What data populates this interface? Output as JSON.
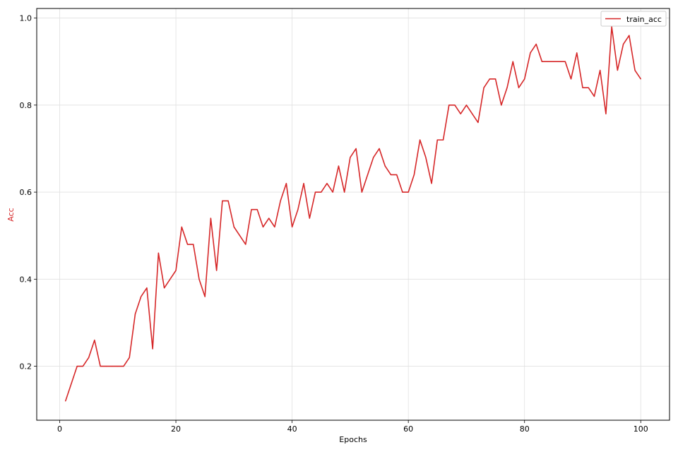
{
  "chart_data": {
    "type": "line",
    "xlabel": "Epochs",
    "ylabel": "Acc",
    "xlim": [
      -3.95,
      104.95
    ],
    "ylim": [
      0.076,
      1.022
    ],
    "xticks": [
      0,
      20,
      40,
      60,
      80,
      100
    ],
    "yticks": [
      0.2,
      0.4,
      0.6,
      0.8,
      1.0
    ],
    "xtick_labels": [
      "0",
      "20",
      "40",
      "60",
      "80",
      "100"
    ],
    "ytick_labels": [
      "0.2",
      "0.4",
      "0.6",
      "0.8",
      "1.0"
    ],
    "grid": true,
    "legend_position": "top-right",
    "series": [
      {
        "name": "train_acc",
        "color": "#d62728",
        "x": [
          1,
          2,
          3,
          4,
          5,
          6,
          7,
          8,
          9,
          10,
          11,
          12,
          13,
          14,
          15,
          16,
          17,
          18,
          19,
          20,
          21,
          22,
          23,
          24,
          25,
          26,
          27,
          28,
          29,
          30,
          31,
          32,
          33,
          34,
          35,
          36,
          37,
          38,
          39,
          40,
          41,
          42,
          43,
          44,
          45,
          46,
          47,
          48,
          49,
          50,
          51,
          52,
          53,
          54,
          55,
          56,
          57,
          58,
          59,
          60,
          61,
          62,
          63,
          64,
          65,
          66,
          67,
          68,
          69,
          70,
          71,
          72,
          73,
          74,
          75,
          76,
          77,
          78,
          79,
          80,
          81,
          82,
          83,
          84,
          85,
          86,
          87,
          88,
          89,
          90,
          91,
          92,
          93,
          94,
          95,
          96,
          97,
          98,
          99,
          100
        ],
        "values": [
          0.12,
          0.16,
          0.2,
          0.2,
          0.22,
          0.26,
          0.2,
          0.2,
          0.2,
          0.2,
          0.2,
          0.22,
          0.32,
          0.36,
          0.38,
          0.24,
          0.46,
          0.38,
          0.4,
          0.42,
          0.52,
          0.48,
          0.48,
          0.4,
          0.36,
          0.54,
          0.42,
          0.58,
          0.58,
          0.52,
          0.5,
          0.48,
          0.56,
          0.56,
          0.52,
          0.54,
          0.52,
          0.58,
          0.62,
          0.52,
          0.56,
          0.62,
          0.54,
          0.6,
          0.6,
          0.62,
          0.6,
          0.66,
          0.6,
          0.68,
          0.7,
          0.6,
          0.64,
          0.68,
          0.7,
          0.66,
          0.64,
          0.64,
          0.6,
          0.6,
          0.64,
          0.72,
          0.68,
          0.62,
          0.72,
          0.72,
          0.8,
          0.8,
          0.78,
          0.8,
          0.78,
          0.76,
          0.84,
          0.86,
          0.86,
          0.8,
          0.84,
          0.9,
          0.84,
          0.86,
          0.92,
          0.94,
          0.9,
          0.9,
          0.9,
          0.9,
          0.9,
          0.86,
          0.92,
          0.84,
          0.84,
          0.82,
          0.88,
          0.78,
          0.98,
          0.88,
          0.94,
          0.96,
          0.88,
          0.86
        ]
      }
    ]
  }
}
